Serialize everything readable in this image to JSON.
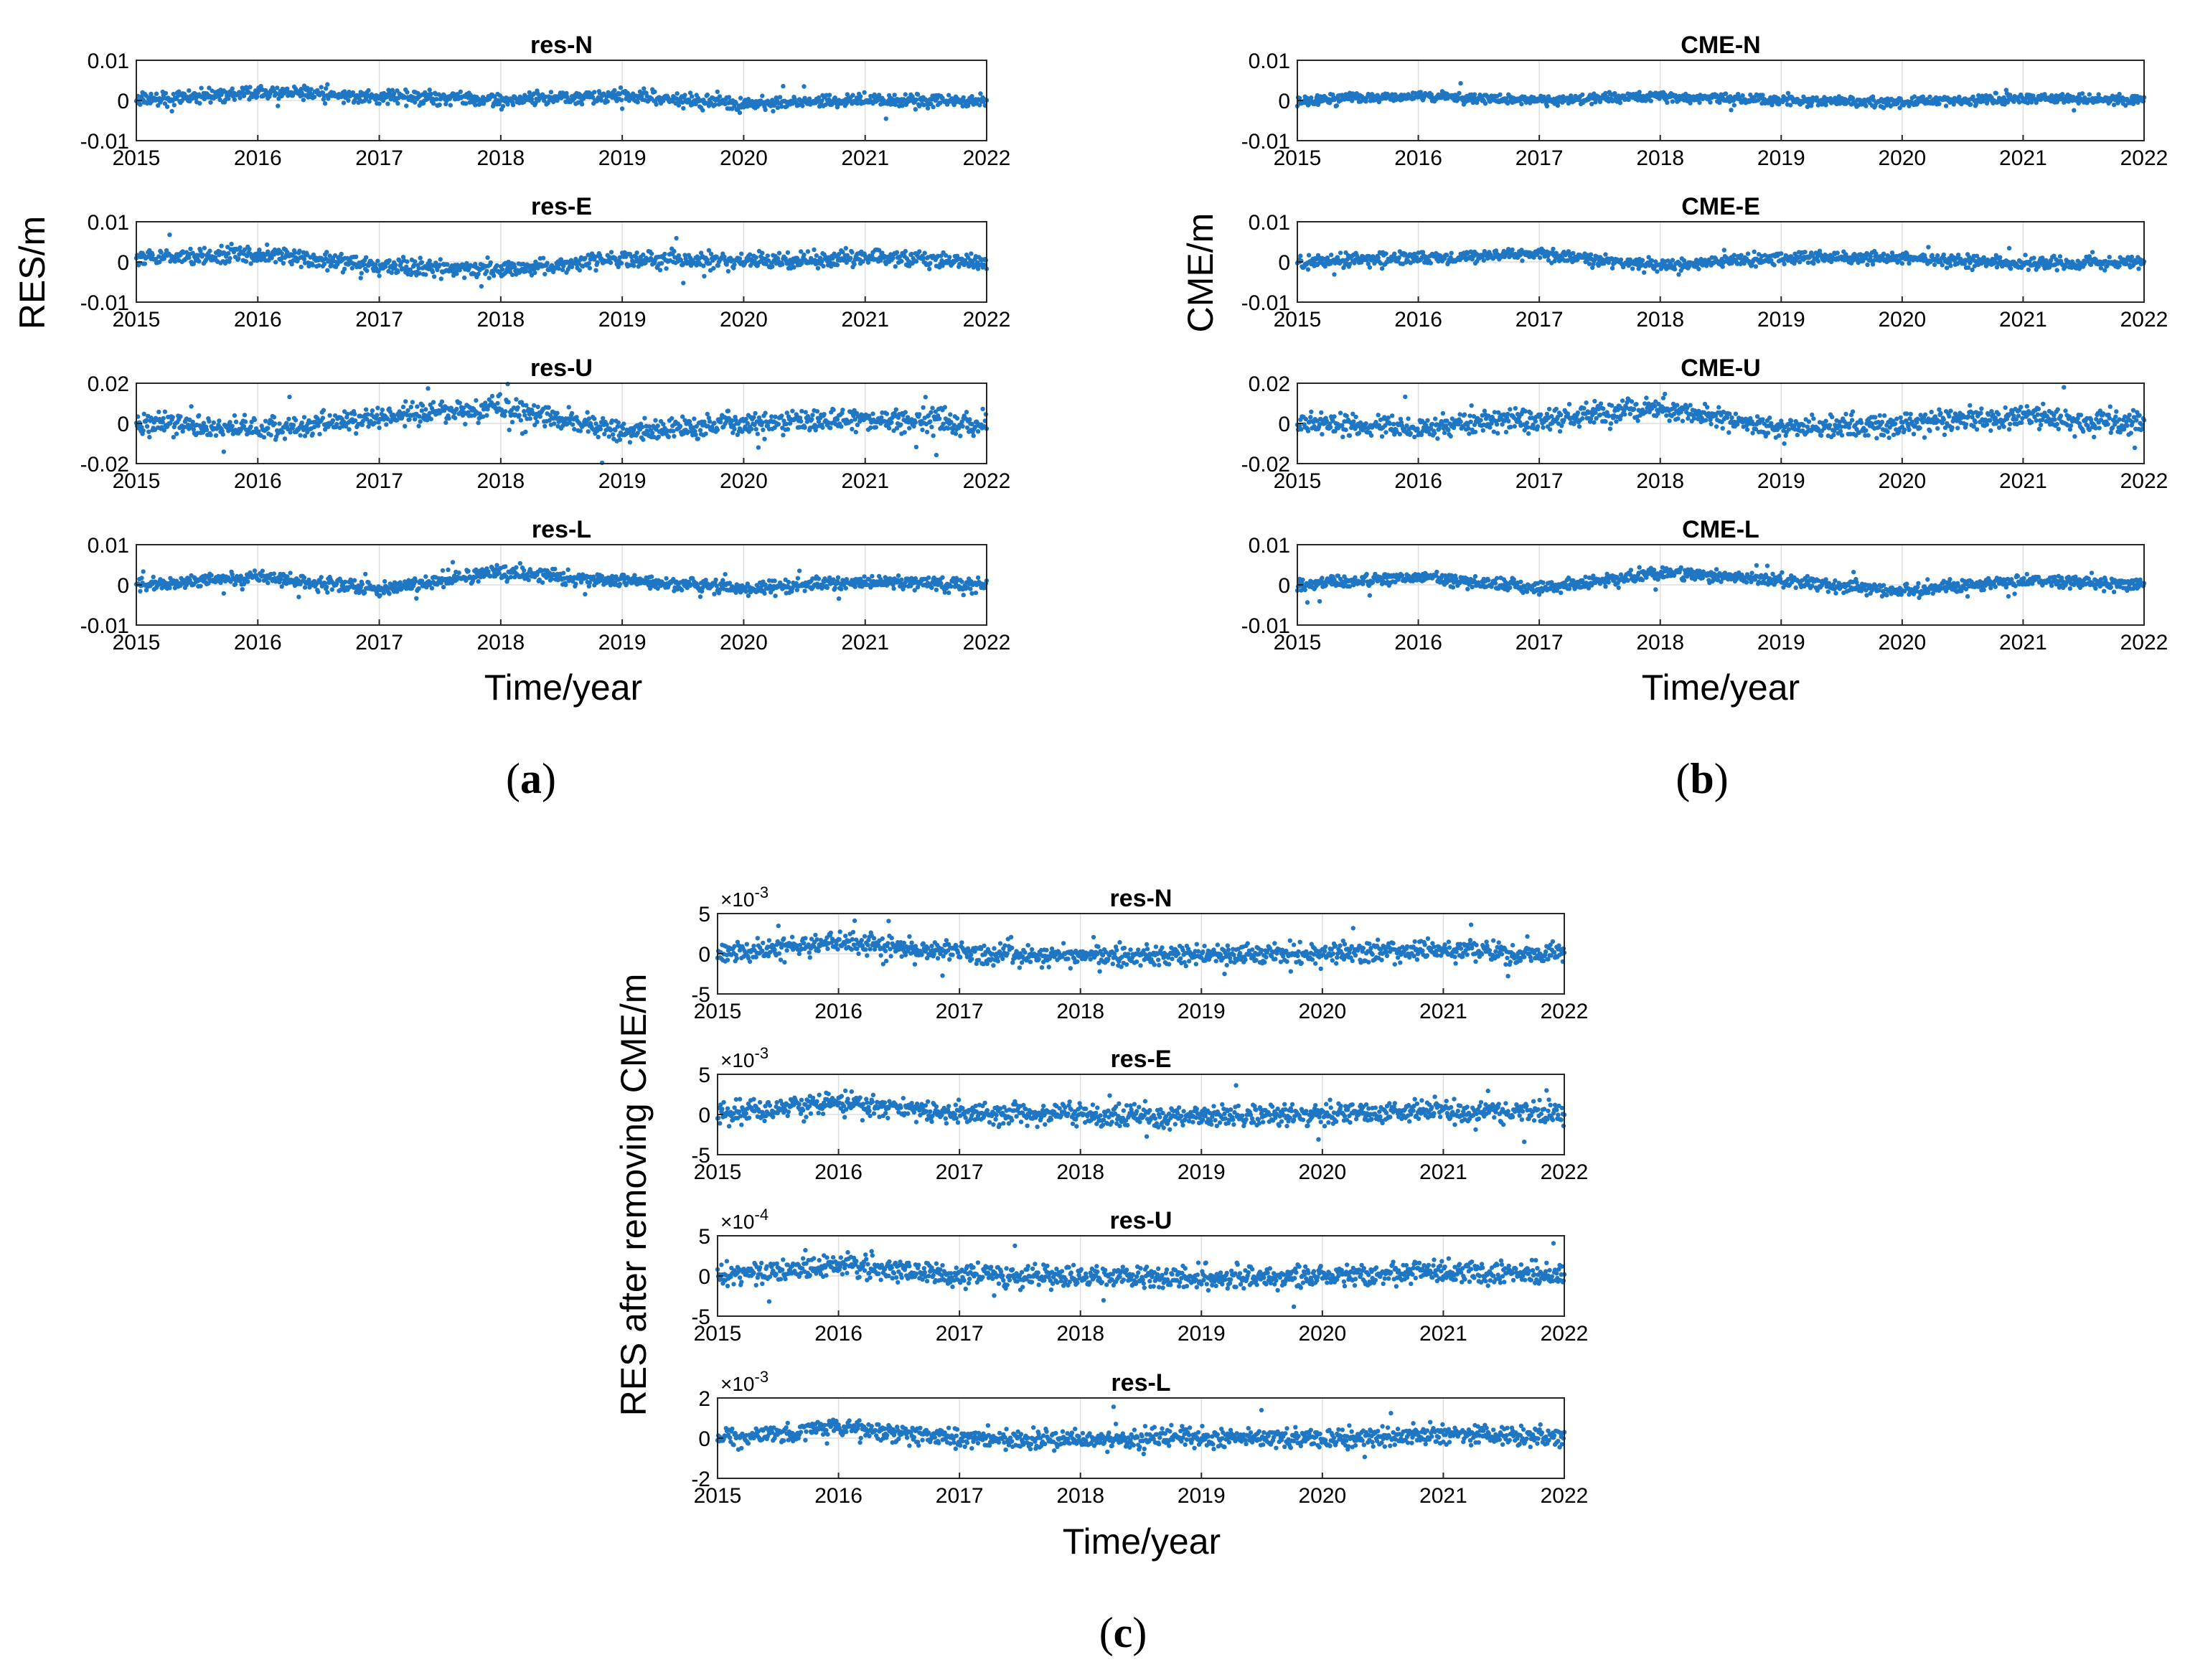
{
  "figure": {
    "panels": [
      {
        "id": "a",
        "caption": "a",
        "ylabel": "RES/m",
        "xlabel": "Time/year",
        "subplots": [
          {
            "title": "res-N",
            "yticks": [
              "0.01",
              "0",
              "-0.01"
            ],
            "xticks": [
              "2015",
              "2016",
              "2017",
              "2018",
              "2019",
              "2020",
              "2021",
              "2022"
            ]
          },
          {
            "title": "res-E",
            "yticks": [
              "0.01",
              "0",
              "-0.01"
            ],
            "xticks": [
              "2015",
              "2016",
              "2017",
              "2018",
              "2019",
              "2020",
              "2021",
              "2022"
            ]
          },
          {
            "title": "res-U",
            "yticks": [
              "0.02",
              "0",
              "-0.02"
            ],
            "xticks": [
              "2015",
              "2016",
              "2017",
              "2018",
              "2019",
              "2020",
              "2021",
              "2022"
            ]
          },
          {
            "title": "res-L",
            "yticks": [
              "0.01",
              "0",
              "-0.01"
            ],
            "xticks": [
              "2015",
              "2016",
              "2017",
              "2018",
              "2019",
              "2020",
              "2021",
              "2022"
            ]
          }
        ]
      },
      {
        "id": "b",
        "caption": "b",
        "ylabel": "CME/m",
        "xlabel": "Time/year",
        "subplots": [
          {
            "title": "CME-N",
            "yticks": [
              "0.01",
              "0",
              "-0.01"
            ],
            "xticks": [
              "2015",
              "2016",
              "2017",
              "2018",
              "2019",
              "2020",
              "2021",
              "2022"
            ]
          },
          {
            "title": "CME-E",
            "yticks": [
              "0.01",
              "0",
              "-0.01"
            ],
            "xticks": [
              "2015",
              "2016",
              "2017",
              "2018",
              "2019",
              "2020",
              "2021",
              "2022"
            ]
          },
          {
            "title": "CME-U",
            "yticks": [
              "0.02",
              "0",
              "-0.02"
            ],
            "xticks": [
              "2015",
              "2016",
              "2017",
              "2018",
              "2019",
              "2020",
              "2021",
              "2022"
            ]
          },
          {
            "title": "CME-L",
            "yticks": [
              "0.01",
              "0",
              "-0.01"
            ],
            "xticks": [
              "2015",
              "2016",
              "2017",
              "2018",
              "2019",
              "2020",
              "2021",
              "2022"
            ]
          }
        ]
      },
      {
        "id": "c",
        "caption": "c",
        "ylabel": "RES after removing CME/m",
        "xlabel": "Time/year",
        "subplots": [
          {
            "title": "res-N",
            "yticks": [
              "5",
              "0",
              "-5"
            ],
            "exponent_base": "×10",
            "exponent": "-3",
            "xticks": [
              "2015",
              "2016",
              "2017",
              "2018",
              "2019",
              "2020",
              "2021",
              "2022"
            ]
          },
          {
            "title": "res-E",
            "yticks": [
              "5",
              "0",
              "-5"
            ],
            "exponent_base": "×10",
            "exponent": "-3",
            "xticks": [
              "2015",
              "2016",
              "2017",
              "2018",
              "2019",
              "2020",
              "2021",
              "2022"
            ]
          },
          {
            "title": "res-U",
            "yticks": [
              "5",
              "0",
              "-5"
            ],
            "exponent_base": "×10",
            "exponent": "-4",
            "xticks": [
              "2015",
              "2016",
              "2017",
              "2018",
              "2019",
              "2020",
              "2021",
              "2022"
            ]
          },
          {
            "title": "res-L",
            "yticks": [
              "2",
              "0",
              "-2"
            ],
            "exponent_base": "×10",
            "exponent": "-3",
            "xticks": [
              "2015",
              "2016",
              "2017",
              "2018",
              "2019",
              "2020",
              "2021",
              "2022"
            ]
          }
        ]
      }
    ]
  },
  "chart_data": [
    {
      "panel": "a",
      "type": "scatter",
      "xlabel": "Time/year",
      "ylabel": "RES/m",
      "xlim": [
        2015,
        2022
      ],
      "series": [
        {
          "name": "res-N",
          "ylim": [
            -0.01,
            0.01
          ],
          "noise": 0.0012,
          "trend": [
            0.0,
            0.002,
            0.001,
            0.0,
            0.0015,
            -0.001,
            0.0,
            0.0
          ]
        },
        {
          "name": "res-E",
          "ylim": [
            -0.01,
            0.01
          ],
          "noise": 0.0015,
          "trend": [
            0.001,
            0.002,
            -0.001,
            -0.002,
            0.001,
            0.0,
            0.001,
            0.0
          ]
        },
        {
          "name": "res-U",
          "ylim": [
            -0.02,
            0.02
          ],
          "noise": 0.004,
          "trend": [
            0.0,
            -0.003,
            0.003,
            0.008,
            -0.004,
            0.0,
            0.002,
            0.0
          ]
        },
        {
          "name": "res-L",
          "ylim": [
            -0.01,
            0.01
          ],
          "noise": 0.0012,
          "trend": [
            0.0,
            0.002,
            -0.001,
            0.003,
            0.001,
            -0.001,
            0.001,
            0.0
          ]
        }
      ],
      "color": "#1f77c4"
    },
    {
      "panel": "b",
      "type": "scatter",
      "xlabel": "Time/year",
      "ylabel": "CME/m",
      "xlim": [
        2015,
        2022
      ],
      "series": [
        {
          "name": "CME-N",
          "ylim": [
            -0.01,
            0.01
          ],
          "noise": 0.0009,
          "trend": [
            0.0,
            0.001,
            0.0,
            0.001,
            0.0,
            -0.0005,
            0.0005,
            0.0
          ]
        },
        {
          "name": "CME-E",
          "ylim": [
            -0.01,
            0.01
          ],
          "noise": 0.0011,
          "trend": [
            0.0,
            0.001,
            0.002,
            -0.001,
            0.001,
            0.001,
            -0.0005,
            0.0
          ]
        },
        {
          "name": "CME-U",
          "ylim": [
            -0.02,
            0.02
          ],
          "noise": 0.004,
          "trend": [
            0.0,
            -0.002,
            0.002,
            0.008,
            -0.003,
            0.0,
            0.003,
            0.0
          ]
        },
        {
          "name": "CME-L",
          "ylim": [
            -0.01,
            0.01
          ],
          "noise": 0.0011,
          "trend": [
            0.0,
            0.002,
            -0.001,
            0.003,
            0.001,
            -0.0015,
            0.001,
            0.0
          ]
        }
      ],
      "color": "#1f77c4"
    },
    {
      "panel": "c",
      "type": "scatter",
      "xlabel": "Time/year",
      "ylabel": "RES after removing CME/m",
      "xlim": [
        2015,
        2022
      ],
      "series": [
        {
          "name": "res-N",
          "ylim": [
            -0.005,
            0.005
          ],
          "noise": 0.0009,
          "trend": [
            0.0,
            0.0015,
            0.0,
            -0.0003,
            0.0,
            0.0,
            0.0005,
            0.0
          ]
        },
        {
          "name": "res-E",
          "ylim": [
            -0.005,
            0.005
          ],
          "noise": 0.001,
          "trend": [
            0.0,
            0.0015,
            0.0,
            0.0,
            -0.0003,
            0.0,
            0.0005,
            0.0
          ]
        },
        {
          "name": "res-U",
          "ylim": [
            -0.0005,
            0.0005
          ],
          "noise": 0.0001,
          "trend": [
            0.0,
            0.00015,
            0.0,
            0.0,
            -3e-05,
            0.0,
            5e-05,
            0.0
          ]
        },
        {
          "name": "res-L",
          "ylim": [
            -0.002,
            0.002
          ],
          "noise": 0.00035,
          "trend": [
            0.0,
            0.0005,
            0.0,
            -0.0001,
            0.0,
            0.0,
            0.0002,
            0.0
          ]
        }
      ],
      "color": "#1f77c4"
    }
  ]
}
